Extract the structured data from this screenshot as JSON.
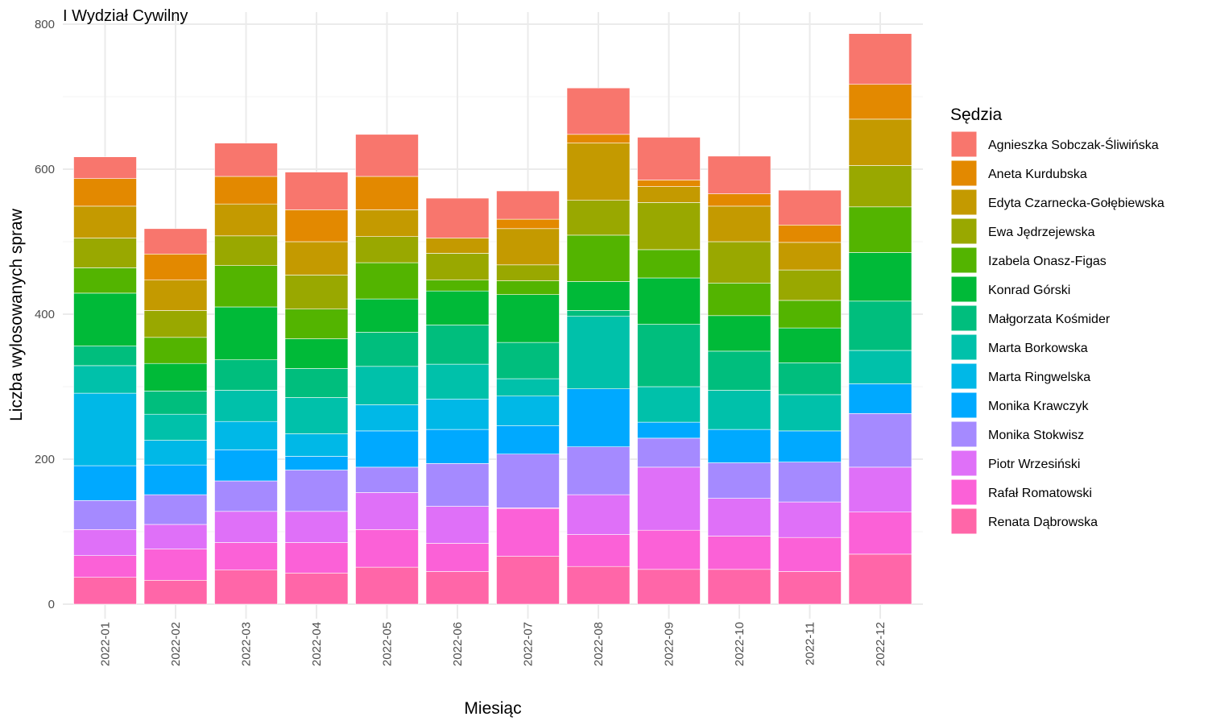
{
  "chart_data": {
    "type": "bar",
    "stacked": true,
    "title": "I Wydział Cywilny",
    "xlabel": "Miesiąc",
    "ylabel": "Liczba wylosowanych spraw",
    "ylim": [
      0,
      800
    ],
    "yticks": [
      0,
      200,
      400,
      600,
      800
    ],
    "grid": true,
    "legend_title": "Sędzia",
    "legend_position": "right",
    "categories": [
      "2022-01",
      "2022-02",
      "2022-03",
      "2022-04",
      "2022-05",
      "2022-06",
      "2022-07",
      "2022-08",
      "2022-09",
      "2022-10",
      "2022-11",
      "2022-12"
    ],
    "series": [
      {
        "name": "Renata Dąbrowska",
        "color": "#FF66A8",
        "values": [
          37,
          33,
          47,
          43,
          51,
          45,
          66,
          52,
          48,
          48,
          45,
          69
        ]
      },
      {
        "name": "Rafał Romatowski",
        "color": "#FB61D7",
        "values": [
          30,
          43,
          38,
          42,
          52,
          39,
          66,
          44,
          54,
          46,
          47,
          58
        ]
      },
      {
        "name": "Piotr Wrzesiński",
        "color": "#DF70F8",
        "values": [
          36,
          34,
          43,
          43,
          51,
          51,
          1,
          55,
          87,
          52,
          49,
          62
        ]
      },
      {
        "name": "Monika Stokwisz",
        "color": "#A58AFF",
        "values": [
          40,
          41,
          42,
          57,
          35,
          59,
          74,
          66,
          40,
          49,
          55,
          74
        ]
      },
      {
        "name": "Monika Krawczyk",
        "color": "#00A9FF",
        "values": [
          48,
          41,
          43,
          19,
          50,
          47,
          39,
          80,
          22,
          46,
          43,
          41
        ]
      },
      {
        "name": "Marta Ringwelska",
        "color": "#00B8E7",
        "values": [
          100,
          34,
          39,
          31,
          36,
          42,
          41,
          0,
          0,
          0,
          0,
          0
        ]
      },
      {
        "name": "Marta Borkowska",
        "color": "#00C1AA",
        "values": [
          38,
          36,
          43,
          50,
          53,
          48,
          24,
          100,
          49,
          54,
          50,
          46
        ]
      },
      {
        "name": "Małgorzata Kośmider",
        "color": "#00BE7D",
        "values": [
          27,
          32,
          42,
          40,
          47,
          54,
          50,
          8,
          86,
          54,
          44,
          68
        ]
      },
      {
        "name": "Konrad Górski",
        "color": "#00BA38",
        "values": [
          73,
          38,
          73,
          41,
          46,
          47,
          66,
          40,
          64,
          49,
          48,
          67
        ]
      },
      {
        "name": "Izabela Onasz-Figas",
        "color": "#53B400",
        "values": [
          35,
          36,
          57,
          41,
          50,
          15,
          19,
          64,
          39,
          45,
          38,
          63
        ]
      },
      {
        "name": "Ewa Jędrzejewska",
        "color": "#99A800",
        "values": [
          41,
          37,
          41,
          47,
          36,
          37,
          22,
          48,
          65,
          57,
          42,
          57
        ]
      },
      {
        "name": "Edyta Czarnecka-Gołębiewska",
        "color": "#C49A00",
        "values": [
          44,
          42,
          44,
          46,
          37,
          21,
          50,
          79,
          22,
          49,
          38,
          64
        ]
      },
      {
        "name": "Aneta Kurdubska",
        "color": "#E38900",
        "values": [
          38,
          36,
          38,
          44,
          46,
          0,
          13,
          12,
          9,
          17,
          24,
          48
        ]
      },
      {
        "name": "Agnieszka Sobczak-Śliwińska",
        "color": "#F8766D",
        "values": [
          30,
          35,
          46,
          52,
          58,
          55,
          39,
          64,
          59,
          52,
          48,
          70
        ]
      }
    ]
  }
}
